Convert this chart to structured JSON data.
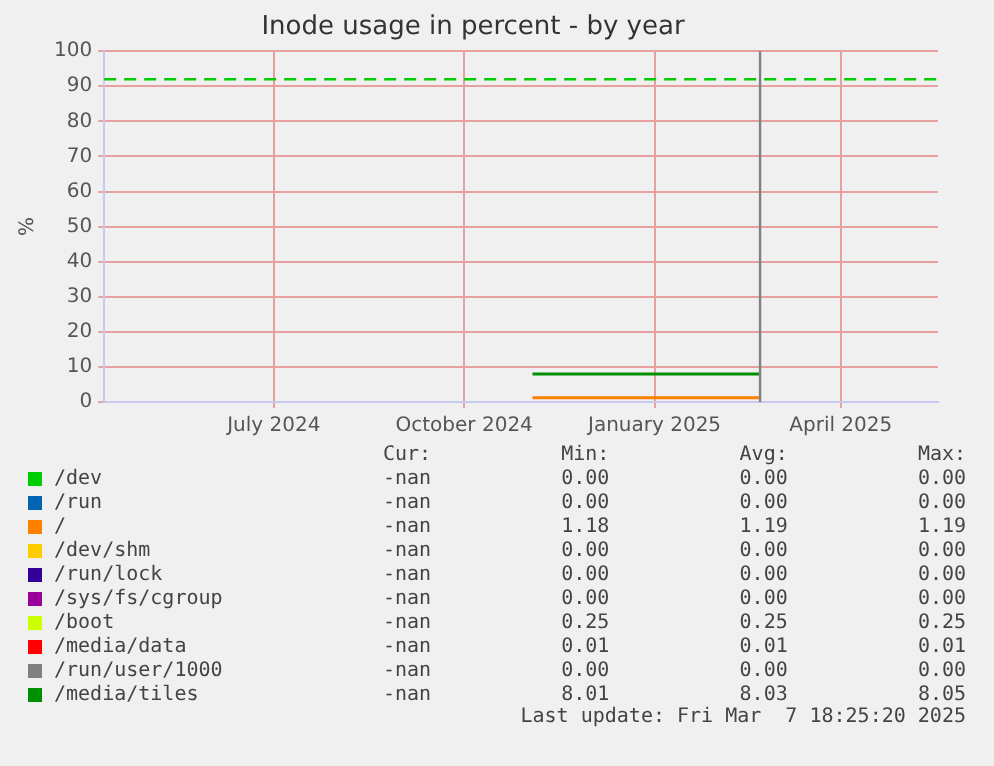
{
  "chart_data": {
    "type": "line",
    "title": "Inode usage in percent - by year",
    "ylabel": "%",
    "xlim": [
      "2024-04-10",
      "2025-05-18"
    ],
    "xticks": [
      {
        "value": "2024-07-01",
        "label": "July 2024"
      },
      {
        "value": "2024-10-01",
        "label": "October 2024"
      },
      {
        "value": "2025-01-01",
        "label": "January 2025"
      },
      {
        "value": "2025-04-01",
        "label": "April 2025"
      }
    ],
    "ylim": [
      0,
      100
    ],
    "yticks": [
      0,
      10,
      20,
      30,
      40,
      50,
      60,
      70,
      80,
      90,
      100
    ],
    "grid": true,
    "legend": "bottom",
    "series": [
      {
        "name": "/dev",
        "color": "#00cc00"
      },
      {
        "name": "/run",
        "color": "#0066b3"
      },
      {
        "name": "/",
        "color": "#ff8000",
        "x": [
          "2024-11-03",
          "2025-02-21"
        ],
        "values": [
          1.2,
          1.2
        ]
      },
      {
        "name": "/dev/shm",
        "color": "#ffcc00"
      },
      {
        "name": "/run/lock",
        "color": "#330099"
      },
      {
        "name": "/sys/fs/cgroup",
        "color": "#990099"
      },
      {
        "name": "/boot",
        "color": "#ccff00"
      },
      {
        "name": "/media/data",
        "color": "#ff0000"
      },
      {
        "name": "/run/user/1000",
        "color": "#808080"
      },
      {
        "name": "/media/tiles",
        "color": "#008f00",
        "x": [
          "2024-11-03",
          "2025-02-21"
        ],
        "values": [
          8,
          8
        ]
      }
    ],
    "ref_lines": [
      {
        "axis": "y",
        "value": 92,
        "color": "#00cc00",
        "line_style": "dashed"
      },
      {
        "axis": "x",
        "value": "2025-02-21",
        "color": "#808080",
        "line_style": "solid"
      }
    ],
    "annotations": [
      "Cur:",
      "Min:",
      "Avg:",
      "Max:",
      "-nan",
      "0.00",
      "0.00",
      "0.00",
      "-nan",
      "0.00",
      "0.00",
      "0.00",
      "-nan",
      "1.18",
      "1.19",
      "1.19",
      "-nan",
      "0.00",
      "0.00",
      "0.00",
      "-nan",
      "0.00",
      "0.00",
      "0.00",
      "-nan",
      "0.00",
      "0.00",
      "0.00",
      "-nan",
      "0.25",
      "0.25",
      "0.25",
      "-nan",
      "0.01",
      "0.01",
      "0.01",
      "-nan",
      "0.00",
      "0.00",
      "0.00",
      "-nan",
      "8.01",
      "8.03",
      "8.05",
      "Last update: Fri Mar  7 18:25:20 2025"
    ]
  }
}
